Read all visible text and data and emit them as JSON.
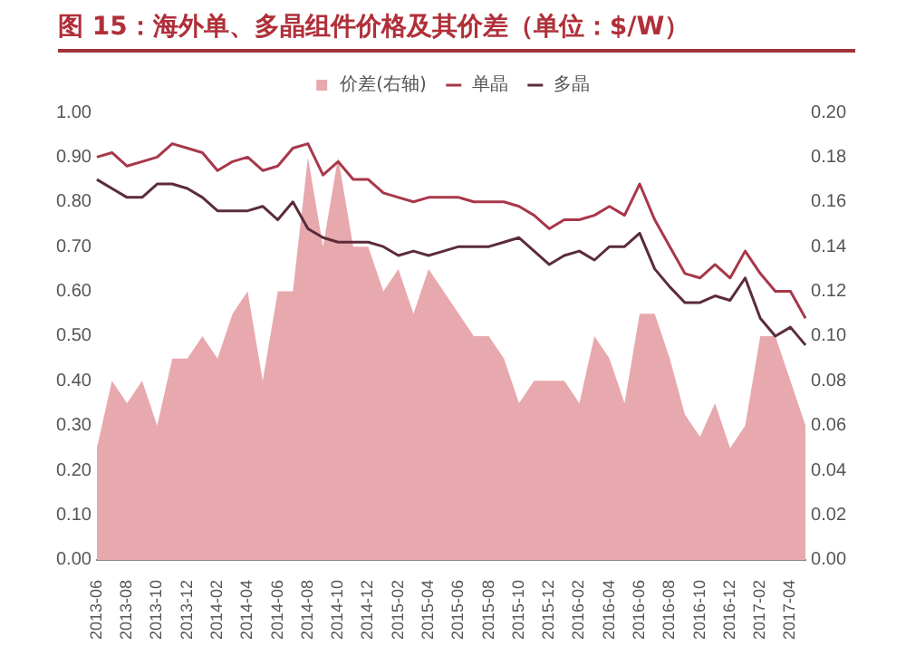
{
  "chart_data": {
    "type": "line",
    "title": "图 15：海外单、多晶组件价格及其价差（单位：$/W）",
    "categories": [
      "2013-06",
      null,
      "2013-08",
      null,
      "2013-10",
      null,
      "2013-12",
      null,
      "2014-02",
      null,
      "2014-04",
      null,
      "2014-06",
      null,
      "2014-08",
      null,
      "2014-10",
      null,
      "2014-12",
      null,
      "2015-02",
      null,
      "2015-04",
      null,
      "2015-06",
      null,
      "2015-08",
      null,
      "2015-10",
      null,
      "2015-12",
      null,
      "2016-02",
      null,
      "2016-04",
      null,
      "2016-06",
      null,
      "2016-08",
      null,
      "2016-10",
      null,
      "2016-12",
      null,
      "2017-02",
      null,
      "2017-04",
      null
    ],
    "series": [
      {
        "name": "价差(右轴)",
        "type": "area",
        "axis": "y2",
        "color": "#e8a9ae",
        "values": [
          0.05,
          0.08,
          0.07,
          0.08,
          0.06,
          0.09,
          0.09,
          0.1,
          0.09,
          0.11,
          0.12,
          0.08,
          0.12,
          0.12,
          0.18,
          0.14,
          0.18,
          0.14,
          0.14,
          0.12,
          0.13,
          0.11,
          0.13,
          0.12,
          0.11,
          0.1,
          0.1,
          0.09,
          0.07,
          0.08,
          0.08,
          0.08,
          0.07,
          0.1,
          0.09,
          0.07,
          0.11,
          0.11,
          0.09,
          0.065,
          0.055,
          0.07,
          0.05,
          0.06,
          0.1,
          0.1,
          0.08,
          0.06
        ]
      },
      {
        "name": "单晶",
        "type": "line",
        "color": "#a8374a",
        "values": [
          0.9,
          0.91,
          0.88,
          0.89,
          0.9,
          0.93,
          0.92,
          0.91,
          0.87,
          0.89,
          0.9,
          0.87,
          0.88,
          0.92,
          0.93,
          0.86,
          0.89,
          0.85,
          0.85,
          0.82,
          0.81,
          0.8,
          0.81,
          0.81,
          0.81,
          0.8,
          0.8,
          0.8,
          0.79,
          0.77,
          0.74,
          0.76,
          0.76,
          0.77,
          0.79,
          0.77,
          0.84,
          0.76,
          0.7,
          0.64,
          0.63,
          0.66,
          0.63,
          0.69,
          0.64,
          0.6,
          0.6,
          0.54
        ]
      },
      {
        "name": "多晶",
        "type": "line",
        "color": "#5b2c3a",
        "values": [
          0.85,
          0.83,
          0.81,
          0.81,
          0.84,
          0.84,
          0.83,
          0.81,
          0.78,
          0.78,
          0.78,
          0.79,
          0.76,
          0.8,
          0.74,
          0.72,
          0.71,
          0.71,
          0.71,
          0.7,
          0.68,
          0.69,
          0.68,
          0.69,
          0.7,
          0.7,
          0.7,
          0.71,
          0.72,
          0.69,
          0.66,
          0.68,
          0.69,
          0.67,
          0.7,
          0.7,
          0.73,
          0.65,
          0.61,
          0.575,
          0.575,
          0.59,
          0.58,
          0.63,
          0.54,
          0.5,
          0.52,
          0.48
        ]
      }
    ],
    "ylim": [
      0,
      1
    ],
    "yticks": [
      {
        "value": 0,
        "label": "0.00"
      },
      {
        "value": 0.1,
        "label": "0.10"
      },
      {
        "value": 0.2,
        "label": "0.20"
      },
      {
        "value": 0.3,
        "label": "0.30"
      },
      {
        "value": 0.4,
        "label": "0.40"
      },
      {
        "value": 0.5,
        "label": "0.50"
      },
      {
        "value": 0.6,
        "label": "0.60"
      },
      {
        "value": 0.7,
        "label": "0.70"
      },
      {
        "value": 0.8,
        "label": "0.80"
      },
      {
        "value": 0.9,
        "label": "0.90"
      },
      {
        "value": 1,
        "label": "1.00"
      }
    ],
    "y2lim": [
      0,
      0.2
    ],
    "y2ticks": [
      {
        "value": 0,
        "label": "0.00"
      },
      {
        "value": 0.02,
        "label": "0.02"
      },
      {
        "value": 0.04,
        "label": "0.04"
      },
      {
        "value": 0.06,
        "label": "0.06"
      },
      {
        "value": 0.08,
        "label": "0.08"
      },
      {
        "value": 0.1,
        "label": "0.10"
      },
      {
        "value": 0.12,
        "label": "0.12"
      },
      {
        "value": 0.14,
        "label": "0.14"
      },
      {
        "value": 0.16,
        "label": "0.16"
      },
      {
        "value": 0.18,
        "label": "0.18"
      },
      {
        "value": 0.2,
        "label": "0.20"
      }
    ],
    "legend": "top"
  }
}
